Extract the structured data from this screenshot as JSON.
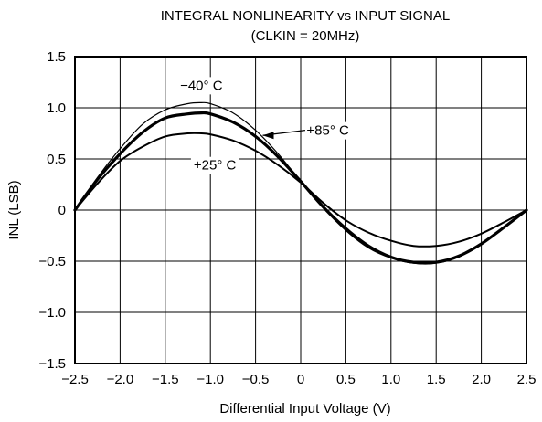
{
  "chart_data": {
    "type": "line",
    "title": "INTEGRAL NONLINEARITY vs INPUT SIGNAL",
    "subtitle": "(CLKIN = 20MHz)",
    "xlabel": "Differential Input Voltage (V)",
    "ylabel": "INL (LSB)",
    "xlim": [
      -2.5,
      2.5
    ],
    "ylim": [
      -1.5,
      1.5
    ],
    "x_ticks": [
      -2.5,
      -2.0,
      -1.5,
      -1.0,
      -0.5,
      0,
      0.5,
      1.0,
      1.5,
      2.0,
      2.5
    ],
    "x_tick_labels": [
      "−2.5",
      "−2.0",
      "−1.5",
      "−1.0",
      "−0.5",
      "0",
      "0.5",
      "1.0",
      "1.5",
      "2.0",
      "2.5"
    ],
    "y_ticks": [
      1.5,
      1.0,
      0.5,
      0,
      -0.5,
      -1.0,
      -1.5
    ],
    "y_tick_labels": [
      "1.5",
      "1.0",
      "0.5",
      "0",
      "−0.5",
      "−1.0",
      "−1.5"
    ],
    "grid": true,
    "series": [
      {
        "name": "−40° C",
        "color": "#000000",
        "x": [
          -2.5,
          -2.25,
          -2.0,
          -1.75,
          -1.5,
          -1.25,
          -1.1,
          -1.0,
          -0.75,
          -0.5,
          -0.25,
          0,
          0.25,
          0.5,
          0.75,
          1.0,
          1.25,
          1.5,
          1.75,
          2.0,
          2.25,
          2.5
        ],
        "y": [
          0,
          0.32,
          0.6,
          0.84,
          0.98,
          1.04,
          1.05,
          1.04,
          0.95,
          0.78,
          0.55,
          0.28,
          0.02,
          -0.2,
          -0.37,
          -0.47,
          -0.52,
          -0.52,
          -0.46,
          -0.33,
          -0.17,
          0
        ]
      },
      {
        "name": "+85° C",
        "color": "#000000",
        "x": [
          -2.5,
          -2.25,
          -2.0,
          -1.75,
          -1.5,
          -1.25,
          -1.1,
          -1.0,
          -0.75,
          -0.5,
          -0.25,
          0,
          0.25,
          0.5,
          0.75,
          1.0,
          1.25,
          1.5,
          1.75,
          2.0,
          2.25,
          2.5
        ],
        "y": [
          0,
          0.3,
          0.55,
          0.76,
          0.9,
          0.94,
          0.95,
          0.94,
          0.86,
          0.72,
          0.52,
          0.28,
          0.03,
          -0.18,
          -0.35,
          -0.46,
          -0.51,
          -0.51,
          -0.45,
          -0.33,
          -0.17,
          0
        ]
      },
      {
        "name": "+25° C",
        "color": "#000000",
        "x": [
          -2.5,
          -2.25,
          -2.0,
          -1.75,
          -1.5,
          -1.25,
          -1.1,
          -1.0,
          -0.75,
          -0.5,
          -0.25,
          0,
          0.25,
          0.5,
          0.75,
          1.0,
          1.25,
          1.5,
          1.75,
          2.0,
          2.25,
          2.5
        ],
        "y": [
          0,
          0.26,
          0.48,
          0.62,
          0.72,
          0.75,
          0.75,
          0.74,
          0.68,
          0.58,
          0.44,
          0.27,
          0.07,
          -0.1,
          -0.22,
          -0.3,
          -0.35,
          -0.35,
          -0.31,
          -0.23,
          -0.12,
          0
        ]
      }
    ],
    "annotations": [
      {
        "text": "−40° C",
        "x": -1.1,
        "y": 1.22
      },
      {
        "text": "+85° C",
        "x": 0.3,
        "y": 0.78
      },
      {
        "text": "+25° C",
        "x": -0.95,
        "y": 0.44
      }
    ]
  }
}
